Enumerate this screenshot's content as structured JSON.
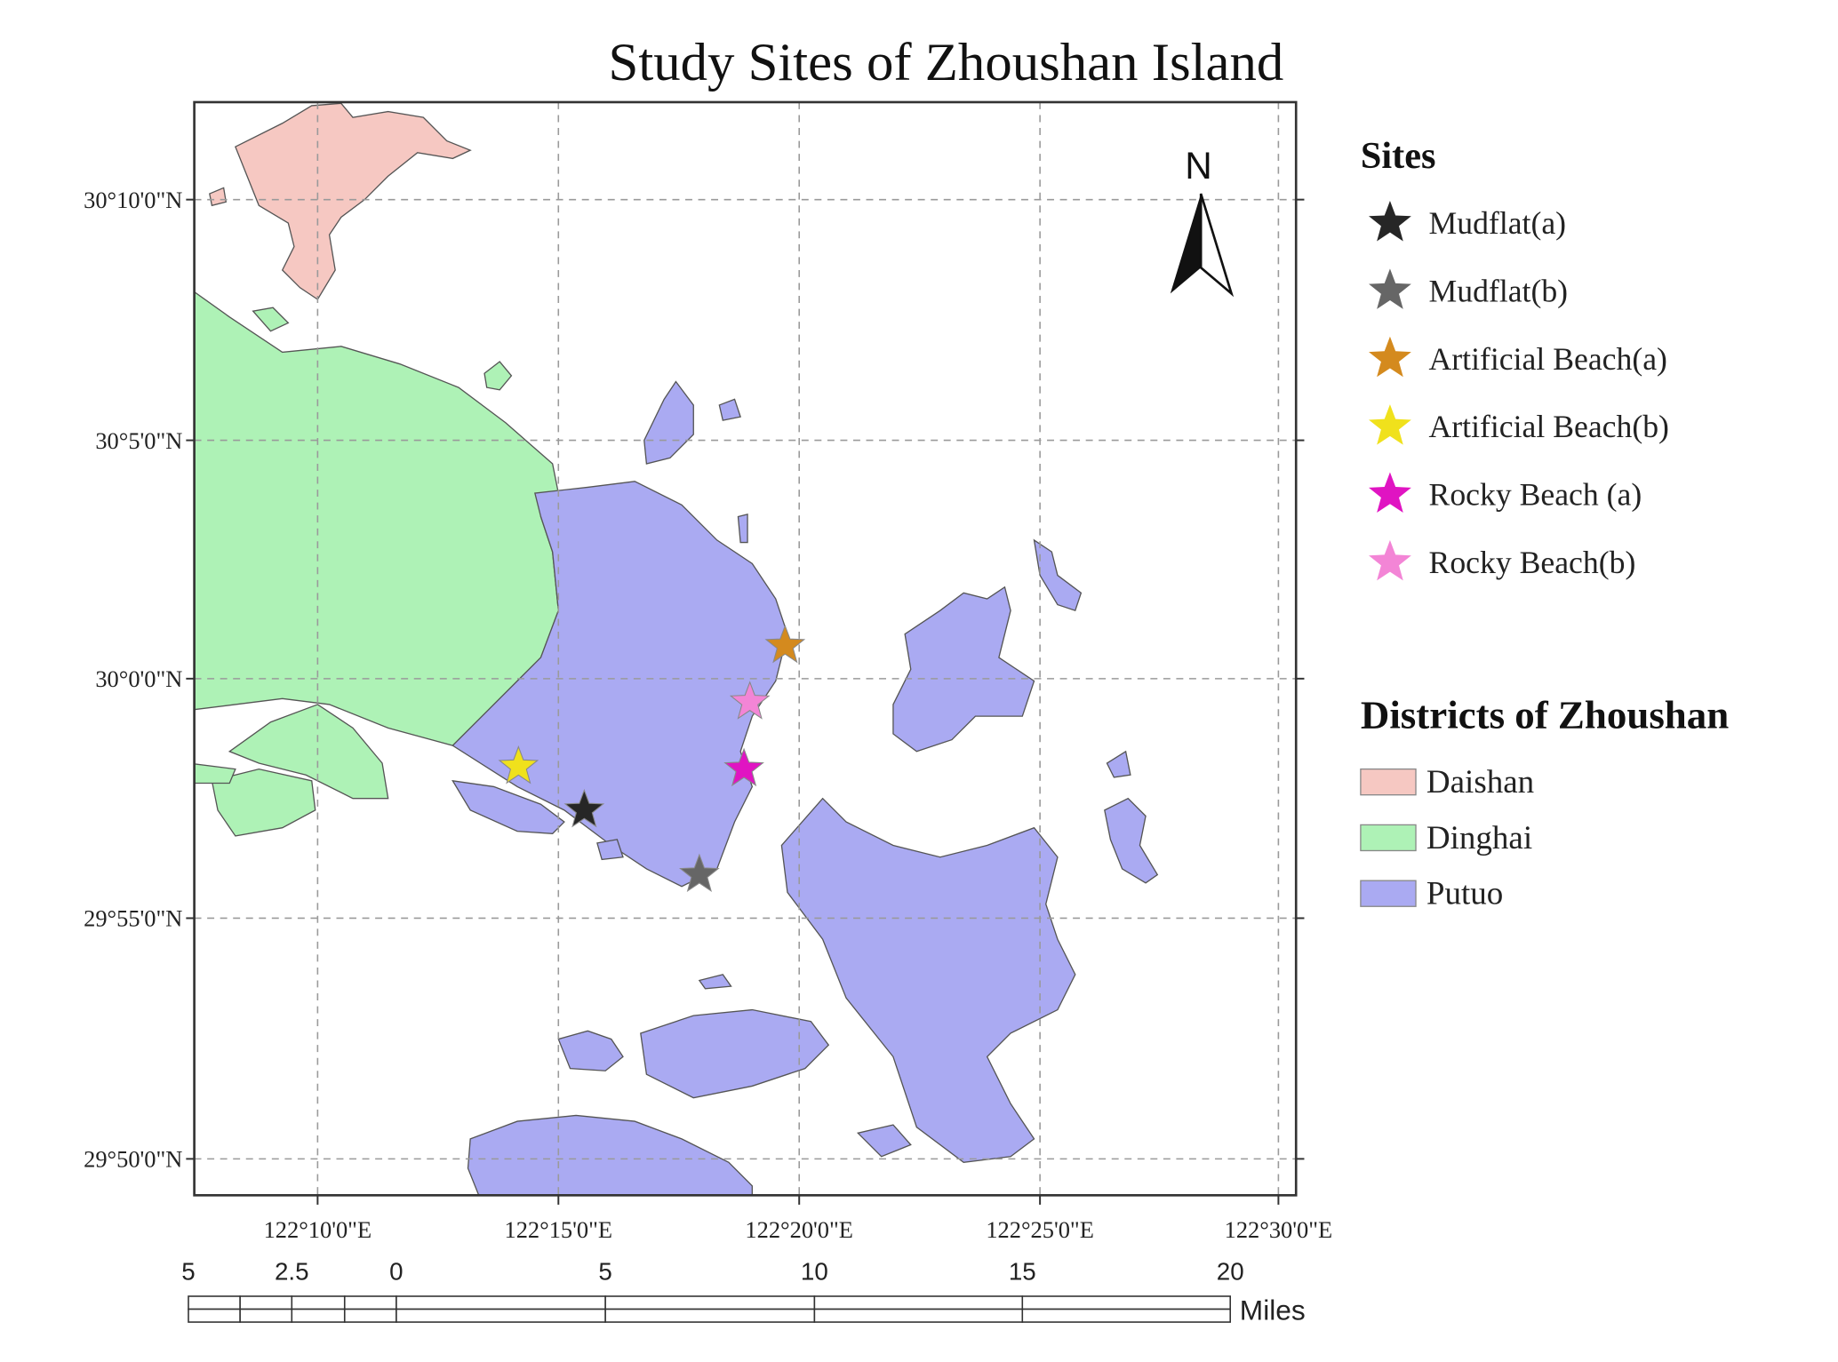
{
  "title": "Study Sites of Zhoushan Island",
  "map": {
    "north": "N",
    "lat_labels": [
      "30°10'0\"N",
      "30°5'0\"N",
      "30°0'0\"N",
      "29°55'0\"N",
      "29°50'0\"N"
    ],
    "lon_labels": [
      "122°10'0\"E",
      "122°15'0\"E",
      "122°20'0\"E",
      "122°25'0\"E",
      "122°30'0\"E"
    ]
  },
  "legend": {
    "sites_title": "Sites",
    "sites": [
      {
        "name": "Mudflat(a)",
        "color": "#262626"
      },
      {
        "name": "Mudflat(b)",
        "color": "#666666"
      },
      {
        "name": "Artificial Beach(a)",
        "color": "#d48a1e"
      },
      {
        "name": "Artificial Beach(b)",
        "color": "#f0e11c"
      },
      {
        "name": "Rocky Beach (a)",
        "color": "#e014c2"
      },
      {
        "name": "Rocky Beach(b)",
        "color": "#f385d6"
      }
    ],
    "districts_title": "Districts of Zhoushan",
    "districts": [
      {
        "name": "Daishan",
        "color": "#f6c8c2"
      },
      {
        "name": "Dinghai",
        "color": "#aef2b6"
      },
      {
        "name": "Putuo",
        "color": "#aaaaf2"
      }
    ]
  },
  "scale_bar": {
    "labels": [
      "5",
      "2.5",
      "0",
      "5",
      "10",
      "15",
      "20"
    ],
    "unit": "Miles"
  }
}
